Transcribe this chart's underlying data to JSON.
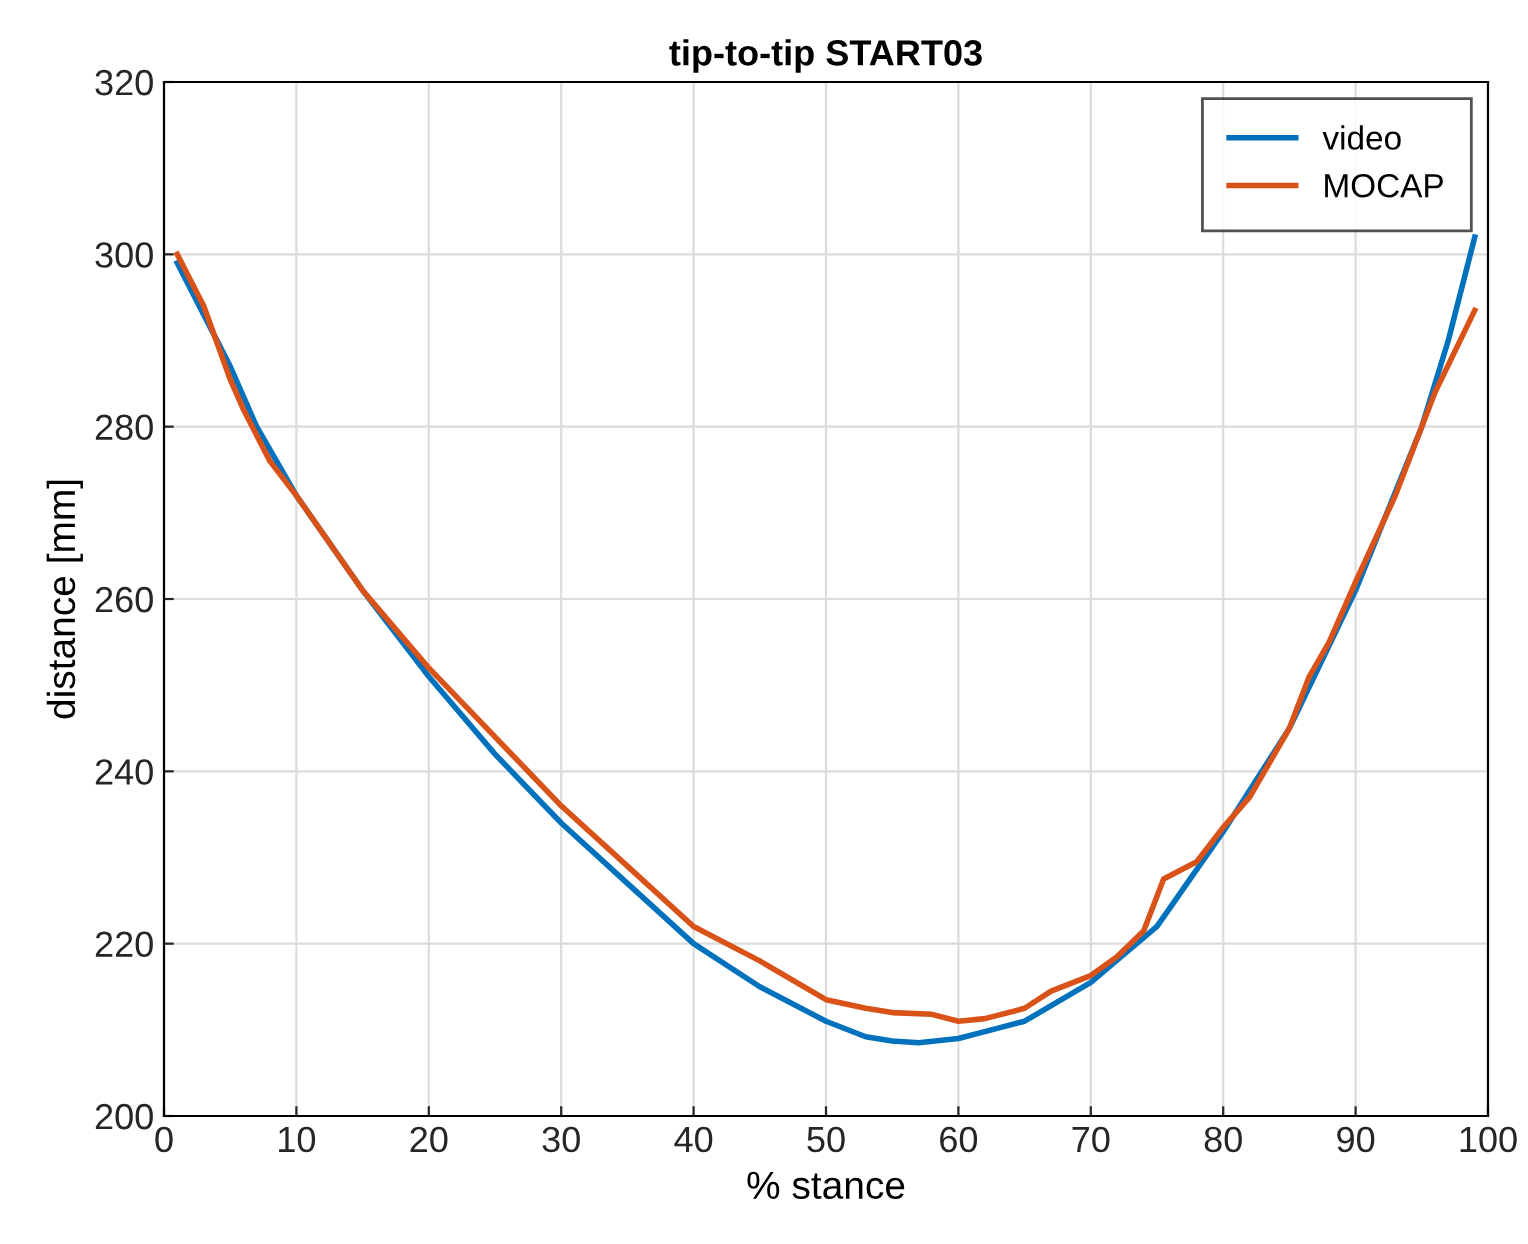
{
  "chart_data": {
    "type": "line",
    "title": "tip-to-tip START03",
    "xlabel": "% stance",
    "ylabel": "distance [mm]",
    "xlim": [
      0,
      100
    ],
    "xticks": [
      0,
      10,
      20,
      30,
      40,
      50,
      60,
      70,
      80,
      90,
      100
    ],
    "ylim": [
      200,
      320
    ],
    "yticks": [
      200,
      220,
      240,
      260,
      280,
      300,
      320
    ],
    "grid": true,
    "legend": "top right",
    "marker": "none",
    "line_style": "solid",
    "series": [
      {
        "name": "video",
        "color": "#0072bd",
        "x": [
          1,
          3,
          5,
          7,
          10,
          15,
          20,
          25,
          30,
          35,
          40,
          45,
          50,
          53,
          55,
          57,
          60,
          63,
          65,
          70,
          75,
          80,
          85,
          90,
          95,
          97,
          99
        ],
        "values": [
          299,
          293,
          287,
          280,
          272,
          261,
          251,
          242,
          234,
          227,
          220,
          215,
          211,
          209.2,
          208.7,
          208.5,
          209,
          210.2,
          211,
          215.5,
          222,
          233,
          245,
          261,
          280,
          290,
          302
        ]
      },
      {
        "name": "MOCAP",
        "color": "#d95319",
        "x": [
          1,
          3,
          5,
          6,
          8,
          10,
          15,
          20,
          25,
          30,
          35,
          40,
          45,
          50,
          53,
          55,
          58,
          60,
          62,
          65,
          67,
          70,
          72,
          74,
          75.5,
          78,
          80,
          82,
          85,
          86.5,
          88,
          90,
          93,
          96,
          99
        ],
        "values": [
          300,
          294,
          285.5,
          282,
          276,
          272,
          261,
          252,
          244,
          236,
          229,
          222,
          218,
          213.5,
          212.5,
          212,
          211.8,
          211,
          211.3,
          212.5,
          214.5,
          216.3,
          218.5,
          221.5,
          227.5,
          229.5,
          233.5,
          237,
          245,
          251,
          255,
          262,
          272,
          284,
          293.5
        ]
      }
    ]
  }
}
